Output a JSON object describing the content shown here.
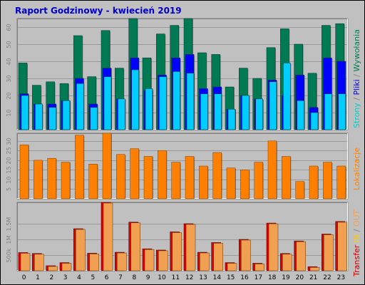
{
  "title": "Raport Godzinowy -  kwiecień 2019",
  "colors": {
    "background": "#c0c0c0",
    "plot_bg": "#c0c0c0",
    "grid": "#9a9a9a",
    "hits": "#007a52",
    "files": "#0000ff",
    "pages": "#00ccff",
    "visits": "#ff8000",
    "kbytes_in": "#dd0000",
    "kbytes_out": "#f0a050",
    "title": "#0000cc"
  },
  "legend": {
    "top": [
      {
        "text": "Strony",
        "color": "#00cccc"
      },
      {
        "text": "/",
        "color": "#808080"
      },
      {
        "text": "Pliki",
        "color": "#0000cc"
      },
      {
        "text": "/",
        "color": "#808080"
      },
      {
        "text": "Wywołania",
        "color": "#007a52"
      }
    ],
    "middle": [
      {
        "text": "Lokalizacje",
        "color": "#ff8000"
      }
    ],
    "bottom": [
      {
        "text": "Transfer",
        "color": "#cc0000"
      },
      {
        "text": "IN",
        "color": "#ffcc00"
      },
      {
        "text": "/",
        "color": "#808080"
      },
      {
        "text": "OUT",
        "color": "#f0a050"
      }
    ]
  },
  "chart_data": [
    {
      "type": "bar",
      "name": "top",
      "categories": [
        "0",
        "1",
        "2",
        "3",
        "4",
        "5",
        "6",
        "7",
        "8",
        "9",
        "10",
        "11",
        "12",
        "13",
        "14",
        "15",
        "16",
        "17",
        "18",
        "19",
        "20",
        "21",
        "22",
        "23"
      ],
      "series": [
        {
          "name": "Wywołania",
          "values": [
            39,
            26,
            28,
            27,
            55,
            31,
            58,
            36,
            65,
            42,
            56,
            61,
            65,
            45,
            44,
            25,
            36,
            30,
            48,
            59,
            50,
            33,
            61,
            62
          ]
        },
        {
          "name": "Pliki",
          "values": [
            21,
            15,
            15,
            17,
            30,
            15,
            36,
            18,
            42,
            23,
            32,
            42,
            44,
            24,
            25,
            12,
            20,
            18,
            29,
            20,
            32,
            13,
            42,
            40
          ]
        },
        {
          "name": "Strony",
          "values": [
            20,
            15,
            13,
            17,
            27,
            13,
            31,
            18,
            35,
            24,
            31,
            34,
            33,
            21,
            21,
            12,
            20,
            18,
            28,
            39,
            17,
            10,
            21,
            21
          ]
        }
      ],
      "yticks": [
        "10",
        "20",
        "30",
        "40",
        "50",
        "60"
      ],
      "ylim": [
        0,
        65
      ],
      "grid": true
    },
    {
      "type": "bar",
      "name": "middle",
      "categories": [
        "0",
        "1",
        "2",
        "3",
        "4",
        "5",
        "6",
        "7",
        "8",
        "9",
        "10",
        "11",
        "12",
        "13",
        "14",
        "15",
        "16",
        "17",
        "18",
        "19",
        "20",
        "21",
        "22",
        "23"
      ],
      "series": [
        {
          "name": "Lokalizacje",
          "values": [
            28,
            20,
            21,
            19,
            33,
            18,
            34,
            23,
            26,
            22,
            25,
            19,
            22,
            17,
            24,
            16,
            15,
            19,
            30,
            22,
            9,
            17,
            19,
            17
          ]
        }
      ],
      "yticks": [
        "5",
        "10",
        "15",
        "20",
        "25",
        "30"
      ],
      "ylim": [
        0,
        34
      ],
      "grid": true
    },
    {
      "type": "bar",
      "name": "bottom",
      "categories": [
        "0",
        "1",
        "2",
        "3",
        "4",
        "5",
        "6",
        "7",
        "8",
        "9",
        "10",
        "11",
        "12",
        "13",
        "14",
        "15",
        "16",
        "17",
        "18",
        "19",
        "20",
        "21",
        "22",
        "23"
      ],
      "series": [
        {
          "name": "IN",
          "values": [
            0.58,
            0.55,
            0.16,
            0.26,
            1.34,
            0.56,
            2.18,
            0.59,
            1.55,
            0.7,
            0.66,
            1.24,
            1.5,
            0.59,
            0.9,
            0.26,
            1.0,
            0.24,
            1.52,
            0.55,
            0.95,
            0.13,
            1.17,
            1.57
          ]
        },
        {
          "name": "OUT",
          "values": [
            0.58,
            0.55,
            0.16,
            0.26,
            1.34,
            0.56,
            2.18,
            0.59,
            1.55,
            0.7,
            0.66,
            1.24,
            1.5,
            0.59,
            0.9,
            0.26,
            1.0,
            0.24,
            1.52,
            0.55,
            0.95,
            0.13,
            1.17,
            1.57
          ]
        }
      ],
      "yticks": [
        "500k",
        "1M",
        "1.5M"
      ],
      "ylim": [
        0,
        2.18
      ],
      "grid": true
    }
  ]
}
